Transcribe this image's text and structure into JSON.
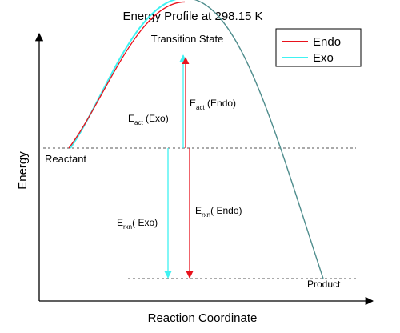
{
  "chart_data": {
    "type": "line",
    "title": "Energy Profile at  298.15 K",
    "xlabel": "Reaction Coordinate",
    "ylabel": "Energy",
    "legend": {
      "position": "top-right",
      "entries": [
        "Endo",
        "Exo"
      ]
    },
    "colors": {
      "Endo": "#e8121c",
      "Exo": "#3ff2f2",
      "axis": "#000000",
      "dashed": "#555555",
      "descent": "#4f8d8d"
    },
    "levels": {
      "reactant": 0,
      "product": -1,
      "transition_endo": 1.12,
      "transition_exo": 1.15
    },
    "annotations": {
      "transition_state": "Transition State",
      "reactant": "Reactant",
      "product": "Product",
      "eact_exo_main": "E",
      "eact_exo_sub": "act",
      "eact_exo_rest": " (Exo)",
      "eact_endo_main": "E",
      "eact_endo_sub": "act",
      "eact_endo_rest": " (Endo)",
      "erxn_exo_main": "E",
      "erxn_exo_sub": "rxn",
      "erxn_exo_rest": "( Exo)",
      "erxn_endo_main": "E",
      "erxn_endo_sub": "rxn",
      "erxn_endo_rest": "( Endo)"
    },
    "grid": false
  }
}
